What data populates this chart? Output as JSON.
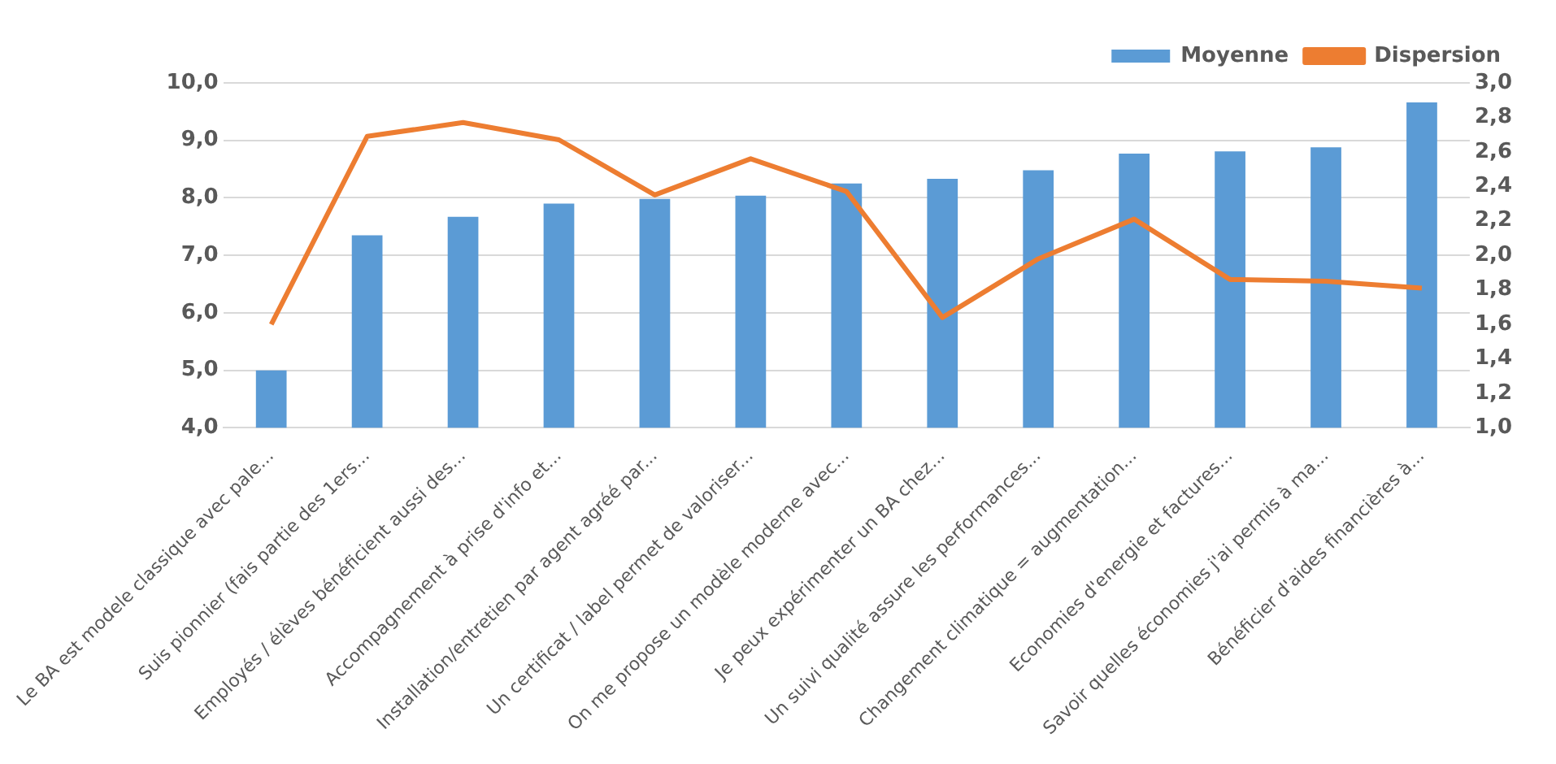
{
  "chart_data": {
    "type": "bar",
    "categories": [
      "Le BA est modele classique avec pale...",
      "Suis pionnier (fais partie des 1ers...",
      "Employés / élèves bénéficient aussi des...",
      "Accompagnement à prise d'info et...",
      "Installation/entretien par agent agréé par...",
      "Un certificat / label permet de valoriser...",
      "On me propose un modèle moderne avec...",
      "Je peux expérimenter un BA chez...",
      "Un suivi qualité assure les performances...",
      "Changement climatique = augmentation...",
      "Economies d'energie et factures...",
      "Savoir quelles économies j'ai permis à ma...",
      "Bénéficier d'aides financières à..."
    ],
    "series": [
      {
        "name": "Moyenne",
        "color": "#5b9bd5",
        "values": [
          5.0,
          7.35,
          7.67,
          7.9,
          7.98,
          8.04,
          8.25,
          8.33,
          8.48,
          8.77,
          8.81,
          8.88,
          9.66
        ]
      },
      {
        "name": "Dispersion",
        "type": "line",
        "axis": "y2",
        "color": "#ed7d31",
        "values": [
          1.6,
          2.69,
          2.77,
          2.67,
          2.35,
          2.56,
          2.37,
          1.64,
          1.98,
          2.21,
          1.86,
          1.85,
          1.81
        ]
      }
    ],
    "ylim": [
      4,
      10
    ],
    "yticks": [
      {
        "value": 4,
        "label": "4,0"
      },
      {
        "value": 5,
        "label": "5,0"
      },
      {
        "value": 6,
        "label": "6,0"
      },
      {
        "value": 7,
        "label": "7,0"
      },
      {
        "value": 8,
        "label": "8,0"
      },
      {
        "value": 9,
        "label": "9,0"
      },
      {
        "value": 10,
        "label": "10,0"
      }
    ],
    "y2lim": [
      1,
      3
    ],
    "y2ticks": [
      {
        "value": 1,
        "label": "1,0"
      },
      {
        "value": 1.2,
        "label": "1,2"
      },
      {
        "value": 1.4,
        "label": "1,4"
      },
      {
        "value": 1.6,
        "label": "1,6"
      },
      {
        "value": 1.8,
        "label": "1,8"
      },
      {
        "value": 2,
        "label": "2,0"
      },
      {
        "value": 2.2,
        "label": "2,2"
      },
      {
        "value": 2.4,
        "label": "2,4"
      },
      {
        "value": 2.6,
        "label": "2,6"
      },
      {
        "value": 2.8,
        "label": "2,8"
      },
      {
        "value": 3,
        "label": "3,0"
      }
    ],
    "grid": "y",
    "legend": "top right",
    "marker": "none",
    "line_style": "solid"
  }
}
